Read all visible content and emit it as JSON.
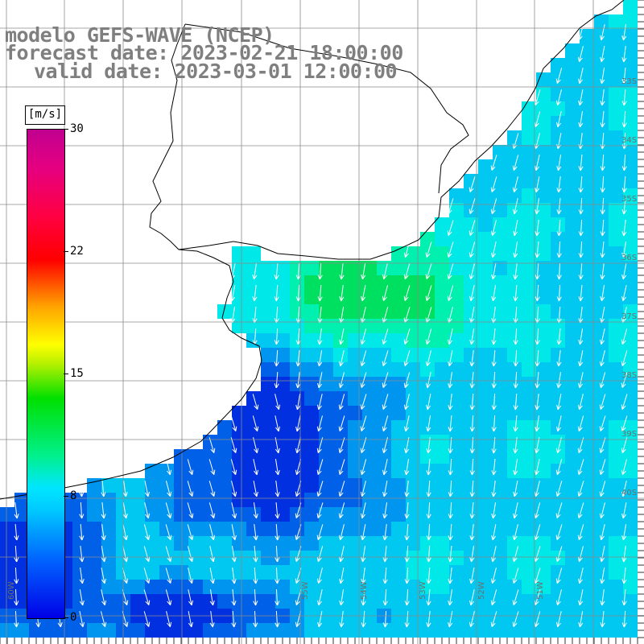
{
  "title": {
    "model": "modelo GEFS-WAVE (NCEP)",
    "forecast": "forecast date: 2023-02-21 18:00:00",
    "valid": "valid date: 2023-03-01 12:00:00"
  },
  "colorbar": {
    "unit": "[m/s]",
    "min": 0,
    "max": 30,
    "ticks": [
      30,
      22,
      15,
      8,
      0
    ]
  },
  "map": {
    "lat_labels": [
      "33S",
      "34S",
      "35S",
      "36S",
      "37S",
      "38S",
      "39S",
      "40S"
    ],
    "lon_labels": [
      "60W",
      "55W",
      "54W",
      "53W",
      "52W",
      "51W"
    ]
  },
  "colors": {
    "land": "#ffffff",
    "coast": "#000000",
    "grid": "#8a8a8a",
    "arrows": "#ffffff",
    "wind_high": "#00e060",
    "wind_mid": "#00e8e8",
    "wind_low": "#0030e0"
  }
}
